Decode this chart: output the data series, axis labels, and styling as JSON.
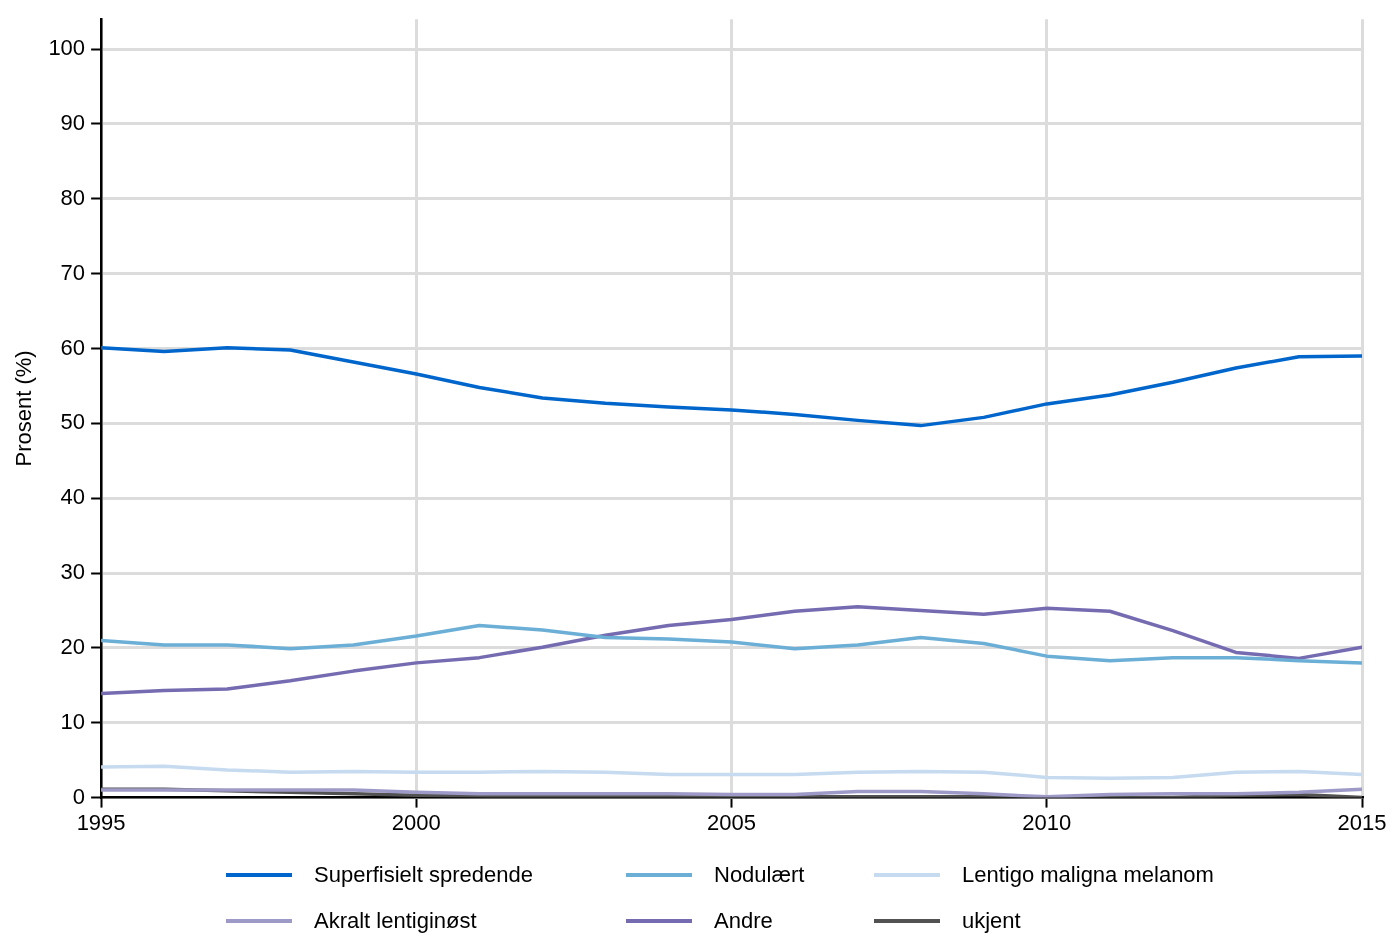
{
  "chart_data": {
    "type": "line",
    "ylabel": "Prosent (%)",
    "x": [
      1995,
      1996,
      1997,
      1998,
      1999,
      2000,
      2001,
      2002,
      2003,
      2004,
      2005,
      2006,
      2007,
      2008,
      2009,
      2010,
      2011,
      2012,
      2013,
      2014,
      2015
    ],
    "xlim": [
      1995,
      2015
    ],
    "xticks": [
      1995,
      2000,
      2005,
      2010,
      2015
    ],
    "ylim": [
      0,
      104
    ],
    "yticks": [
      0,
      10,
      20,
      30,
      40,
      50,
      60,
      70,
      80,
      90,
      100
    ],
    "grid": true,
    "legend": "bottom",
    "marker": "none",
    "line_style": "solid",
    "series": [
      {
        "name": "Superfisielt spredende",
        "color": "#0066cc",
        "values": [
          60.1,
          59.6,
          60.1,
          59.8,
          58.2,
          56.6,
          54.8,
          53.4,
          52.7,
          52.2,
          51.8,
          51.2,
          50.4,
          49.7,
          50.8,
          52.6,
          53.8,
          55.5,
          57.4,
          58.9,
          59.0
        ]
      },
      {
        "name": "Nodulært",
        "color": "#6baed6",
        "values": [
          21.0,
          20.4,
          20.4,
          19.9,
          20.4,
          21.6,
          23.0,
          22.4,
          21.4,
          21.2,
          20.8,
          19.9,
          20.4,
          21.4,
          20.6,
          18.9,
          18.3,
          18.7,
          18.7,
          18.3,
          18.0
        ]
      },
      {
        "name": "Lentigo maligna melanom",
        "color": "#c6dbef",
        "values": [
          4.1,
          4.2,
          3.7,
          3.4,
          3.5,
          3.4,
          3.4,
          3.5,
          3.4,
          3.1,
          3.1,
          3.1,
          3.4,
          3.5,
          3.4,
          2.7,
          2.6,
          2.7,
          3.4,
          3.5,
          3.1
        ]
      },
      {
        "name": "Akralt lentiginøst",
        "color": "#9e9ac8",
        "values": [
          1.0,
          1.0,
          1.0,
          1.0,
          1.0,
          0.7,
          0.5,
          0.5,
          0.5,
          0.5,
          0.4,
          0.4,
          0.8,
          0.8,
          0.5,
          0.1,
          0.4,
          0.5,
          0.5,
          0.7,
          1.1
        ]
      },
      {
        "name": "Andre",
        "color": "#756bb1",
        "values": [
          13.9,
          14.3,
          14.5,
          15.6,
          16.9,
          18.0,
          18.7,
          20.1,
          21.7,
          23.0,
          23.8,
          24.9,
          25.5,
          25.0,
          24.5,
          25.3,
          24.9,
          22.3,
          19.4,
          18.6,
          20.1
        ]
      },
      {
        "name": "ukjent",
        "color": "#525252",
        "values": [
          1.1,
          1.1,
          0.9,
          0.7,
          0.5,
          0.3,
          0.2,
          0.1,
          0.1,
          0.1,
          0.1,
          0.1,
          0.1,
          0.1,
          0.1,
          0.0,
          0.0,
          0.0,
          0.3,
          0.4,
          0.0
        ]
      }
    ]
  }
}
